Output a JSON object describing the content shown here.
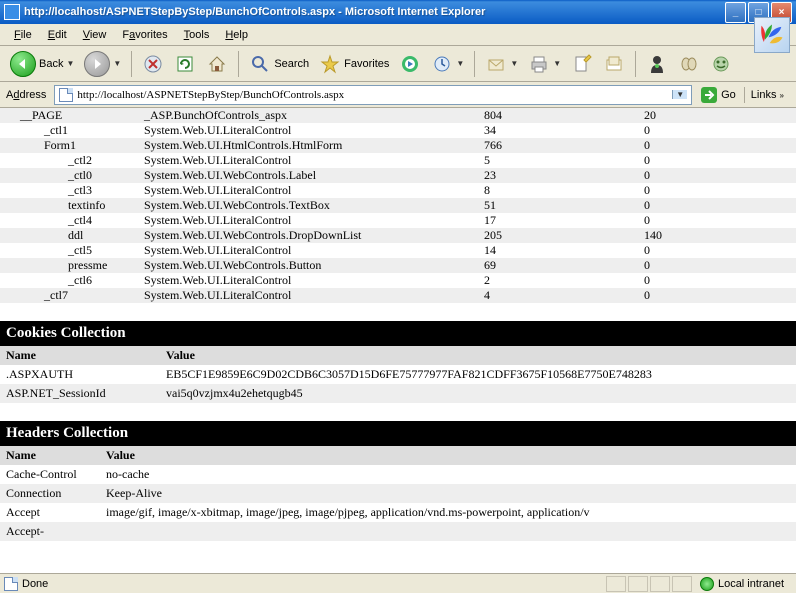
{
  "window": {
    "title": "http://localhost/ASPNETStepByStep/BunchOfControls.aspx - Microsoft Internet Explorer"
  },
  "menu": {
    "file": "File",
    "edit": "Edit",
    "view": "View",
    "favorites": "Favorites",
    "tools": "Tools",
    "help": "Help"
  },
  "toolbar": {
    "back": "Back",
    "search": "Search",
    "favorites": "Favorites"
  },
  "address": {
    "label": "Address",
    "url": "http://localhost/ASPNETStepByStep/BunchOfControls.aspx",
    "go": "Go",
    "links": "Links"
  },
  "controls": [
    {
      "indent": 0,
      "name": "__PAGE",
      "type": "_ASP.BunchOfControls_aspx",
      "a": "804",
      "b": "20"
    },
    {
      "indent": 1,
      "name": "_ctl1",
      "type": "System.Web.UI.LiteralControl",
      "a": "34",
      "b": "0"
    },
    {
      "indent": 1,
      "name": "Form1",
      "type": "System.Web.UI.HtmlControls.HtmlForm",
      "a": "766",
      "b": "0"
    },
    {
      "indent": 2,
      "name": "_ctl2",
      "type": "System.Web.UI.LiteralControl",
      "a": "5",
      "b": "0"
    },
    {
      "indent": 2,
      "name": "_ctl0",
      "type": "System.Web.UI.WebControls.Label",
      "a": "23",
      "b": "0"
    },
    {
      "indent": 2,
      "name": "_ctl3",
      "type": "System.Web.UI.LiteralControl",
      "a": "8",
      "b": "0"
    },
    {
      "indent": 2,
      "name": "textinfo",
      "type": "System.Web.UI.WebControls.TextBox",
      "a": "51",
      "b": "0"
    },
    {
      "indent": 2,
      "name": "_ctl4",
      "type": "System.Web.UI.LiteralControl",
      "a": "17",
      "b": "0"
    },
    {
      "indent": 2,
      "name": "ddl",
      "type": "System.Web.UI.WebControls.DropDownList",
      "a": "205",
      "b": "140"
    },
    {
      "indent": 2,
      "name": "_ctl5",
      "type": "System.Web.UI.LiteralControl",
      "a": "14",
      "b": "0"
    },
    {
      "indent": 2,
      "name": "pressme",
      "type": "System.Web.UI.WebControls.Button",
      "a": "69",
      "b": "0"
    },
    {
      "indent": 2,
      "name": "_ctl6",
      "type": "System.Web.UI.LiteralControl",
      "a": "2",
      "b": "0"
    },
    {
      "indent": 1,
      "name": "_ctl7",
      "type": "System.Web.UI.LiteralControl",
      "a": "4",
      "b": "0"
    }
  ],
  "cookies": {
    "title": "Cookies Collection",
    "name_header": "Name",
    "value_header": "Value",
    "rows": [
      {
        "name": ".ASPXAUTH",
        "value": "EB5CF1E9859E6C9D02CDB6C3057D15D6FE75777977FAF821CDFF3675F10568E7750E748283"
      },
      {
        "name": "ASP.NET_SessionId",
        "value": "vai5q0vzjmx4u2ehetqugb45"
      }
    ]
  },
  "headers": {
    "title": "Headers Collection",
    "name_header": "Name",
    "value_header": "Value",
    "rows": [
      {
        "name": "Cache-Control",
        "value": "no-cache"
      },
      {
        "name": "Connection",
        "value": "Keep-Alive"
      },
      {
        "name": "Accept",
        "value": "image/gif, image/x-xbitmap, image/jpeg, image/pjpeg, application/vnd.ms-powerpoint, application/v"
      },
      {
        "name": "Accept-",
        "value": ""
      }
    ]
  },
  "status": {
    "done": "Done",
    "zone": "Local intranet"
  }
}
